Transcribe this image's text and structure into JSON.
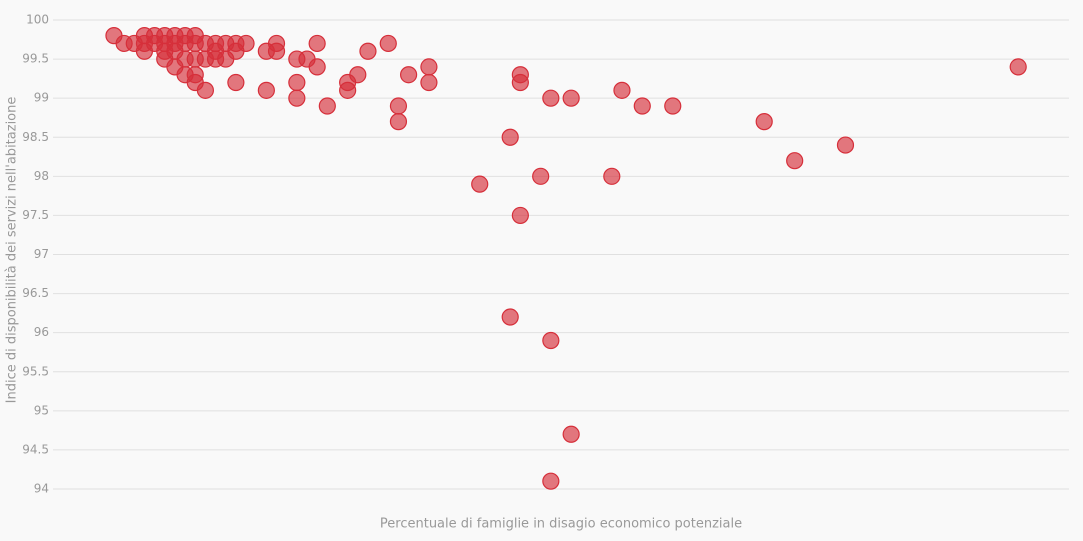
{
  "chart_data": {
    "type": "scatter",
    "x_label": "Percentuale di famiglie in disagio economico potenziale",
    "y_label": "Indice di disponibilità dei servizi nell'abitazione",
    "color": "#d62f3a",
    "xlim": [
      0,
      10
    ],
    "ylim": [
      94,
      100
    ],
    "yticks": [
      94,
      94.5,
      95,
      95.5,
      96,
      96.5,
      97,
      97.5,
      98,
      98.5,
      99,
      99.5,
      100
    ],
    "grid": true,
    "x": [
      0.6,
      0.7,
      0.8,
      0.9,
      0.9,
      0.9,
      1.0,
      1.0,
      1.1,
      1.1,
      1.1,
      1.1,
      1.2,
      1.2,
      1.2,
      1.2,
      1.3,
      1.3,
      1.3,
      1.3,
      1.4,
      1.4,
      1.4,
      1.4,
      1.4,
      1.5,
      1.5,
      1.5,
      1.6,
      1.6,
      1.6,
      1.7,
      1.7,
      1.8,
      1.8,
      1.8,
      1.9,
      2.1,
      2.1,
      2.2,
      2.2,
      2.4,
      2.4,
      2.4,
      2.5,
      2.6,
      2.6,
      2.7,
      2.9,
      2.9,
      3.0,
      3.1,
      3.3,
      3.4,
      3.4,
      3.5,
      3.7,
      3.7,
      4.2,
      4.5,
      4.5,
      4.6,
      4.6,
      4.6,
      4.8,
      4.9,
      4.9,
      4.9,
      5.1,
      5.1,
      5.5,
      5.6,
      5.8,
      6.1,
      7.0,
      7.3,
      7.8,
      9.5
    ],
    "values": [
      99.8,
      99.7,
      99.7,
      99.8,
      99.7,
      99.6,
      99.8,
      99.7,
      99.8,
      99.7,
      99.6,
      99.5,
      99.8,
      99.7,
      99.6,
      99.4,
      99.8,
      99.7,
      99.5,
      99.3,
      99.8,
      99.7,
      99.5,
      99.3,
      99.2,
      99.7,
      99.5,
      99.1,
      99.7,
      99.6,
      99.5,
      99.7,
      99.5,
      99.7,
      99.6,
      99.2,
      99.7,
      99.6,
      99.1,
      99.7,
      99.6,
      99.5,
      99.2,
      99.0,
      99.5,
      99.7,
      99.4,
      98.9,
      99.2,
      99.1,
      99.3,
      99.6,
      99.7,
      98.9,
      98.7,
      99.3,
      99.4,
      99.2,
      97.9,
      98.5,
      96.2,
      99.3,
      99.2,
      97.5,
      98.0,
      99.0,
      95.9,
      94.1,
      99.0,
      94.7,
      98.0,
      99.1,
      98.9,
      98.9,
      98.7,
      98.2,
      98.4,
      99.4
    ]
  }
}
